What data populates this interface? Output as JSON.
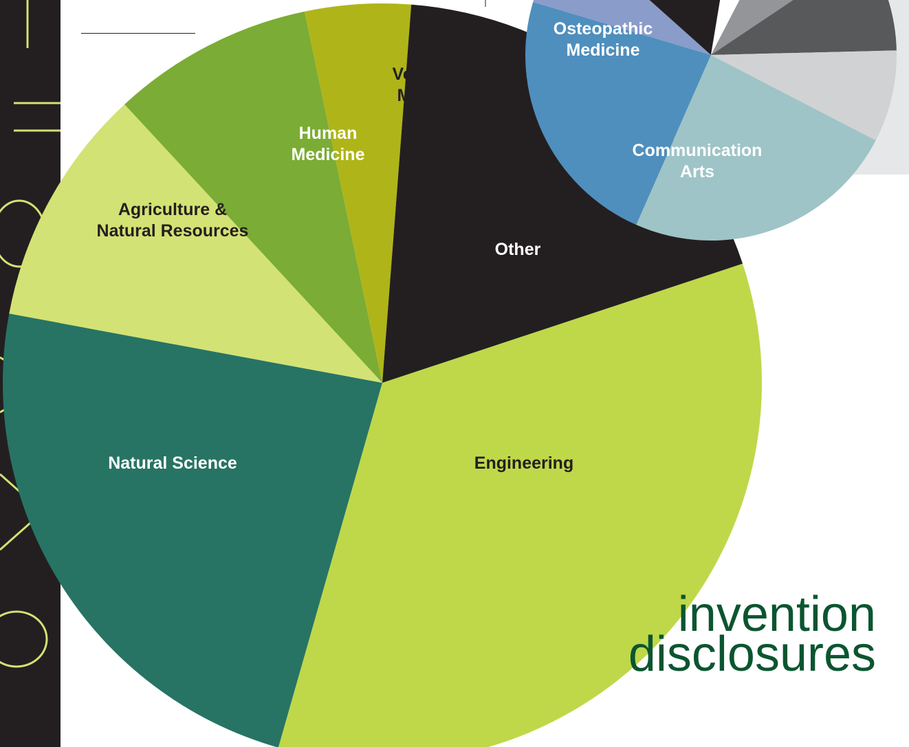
{
  "chart_data": [
    {
      "type": "pie",
      "title": "invention disclosures",
      "title_lines": [
        "invention",
        "disclosures"
      ],
      "slices": [
        {
          "label": "Engineering",
          "value": 34.5,
          "color": "#bfd849",
          "text_color": "#231f20",
          "label_lines": [
            "Engineering"
          ]
        },
        {
          "label": "Natural Science",
          "value": 23.5,
          "color": "#277464",
          "text_color": "#ffffff",
          "label_lines": [
            "Natural Science"
          ]
        },
        {
          "label": "Agriculture & Natural Resources",
          "value": 10.2,
          "color": "#d3e274",
          "text_color": "#231f20",
          "label_lines": [
            "Agriculture &",
            "Natural Resources"
          ]
        },
        {
          "label": "Human Medicine",
          "value": 8.6,
          "color": "#7bac35",
          "text_color": "#ffffff",
          "label_lines": [
            "Human",
            "Medicine"
          ]
        },
        {
          "label": "Veterinary Medicine",
          "value": 4.5,
          "color": "#afb518",
          "text_color": "#231f20",
          "label_lines": [
            "Veterinary",
            "Medicine"
          ]
        },
        {
          "label": "Other",
          "value": 18.7,
          "color": "#231f20",
          "text_color": "#ffffff",
          "label_lines": [
            "Other"
          ]
        }
      ]
    },
    {
      "type": "pie",
      "title": "",
      "slices": [
        {
          "label": "Communication Arts",
          "value": 24,
          "color": "#9ec4c7",
          "text_color": "#ffffff",
          "label_lines": [
            "Communication",
            "Arts"
          ]
        },
        {
          "label": "Osteopathic Medicine",
          "value": 23,
          "color": "#4f8fbd",
          "text_color": "#ffffff",
          "label_lines": [
            "Osteopathic",
            "Medicine"
          ]
        },
        {
          "label": "",
          "value": 7,
          "color": "#8a9cc9",
          "text_color": "#ffffff",
          "label_lines": []
        },
        {
          "label": "",
          "value": 16,
          "color": "#231f20",
          "text_color": "#ffffff",
          "label_lines": []
        },
        {
          "label": "",
          "value": 5,
          "color": "#ffffff",
          "text_color": "#231f20",
          "label_lines": []
        },
        {
          "label": "",
          "value": 8,
          "color": "#939598",
          "text_color": "#231f20",
          "label_lines": []
        },
        {
          "label": "",
          "value": 9,
          "color": "#58595b",
          "text_color": "#231f20",
          "label_lines": []
        },
        {
          "label": "",
          "value": 8,
          "color": "#d1d2d4",
          "text_color": "#231f20",
          "label_lines": []
        }
      ]
    }
  ]
}
